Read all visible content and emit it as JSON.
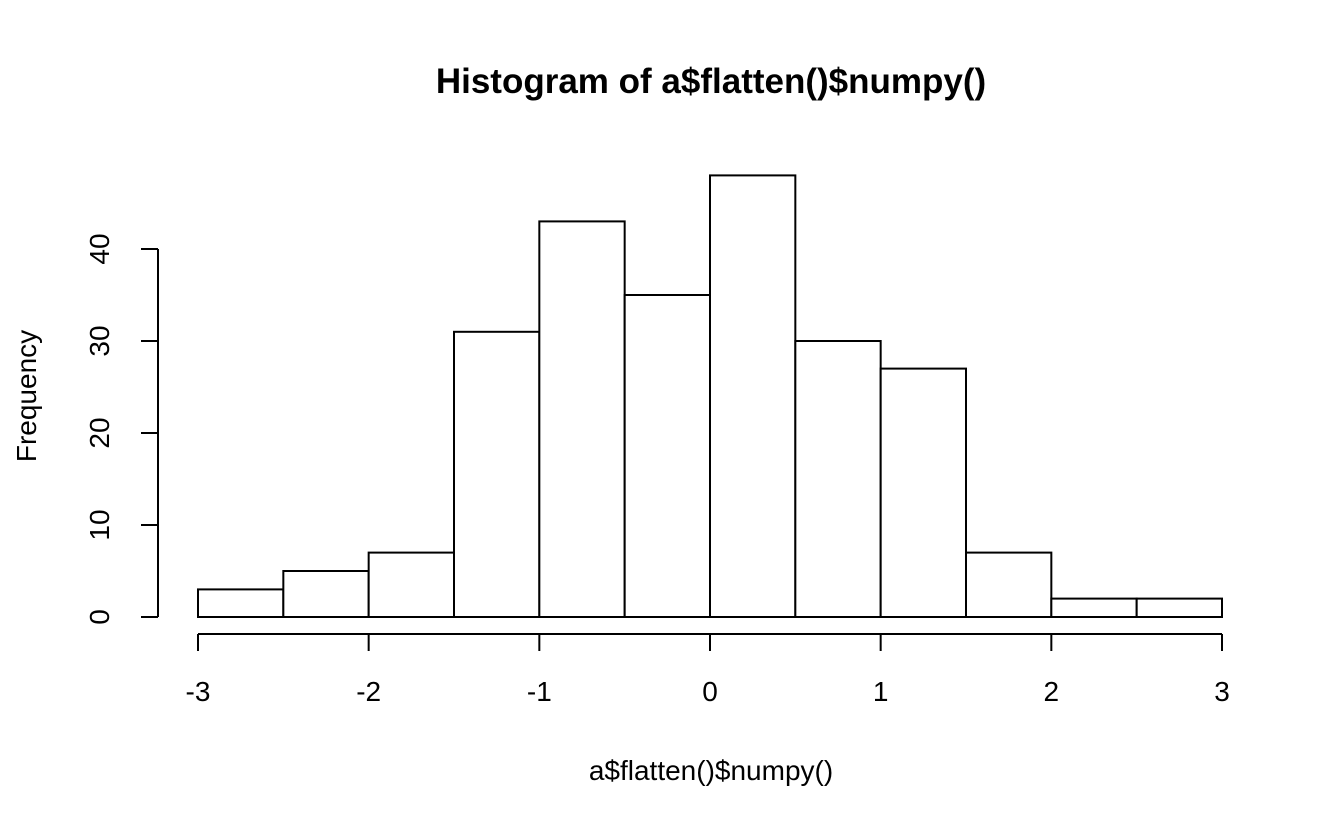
{
  "chart_data": {
    "type": "bar",
    "histogram": true,
    "title": "Histogram of a$flatten()$numpy()",
    "xlabel": "a$flatten()$numpy()",
    "ylabel": "Frequency",
    "bin_edges": [
      -3,
      -2.5,
      -2,
      -1.5,
      -1,
      -0.5,
      0,
      0.5,
      1,
      1.5,
      2,
      2.5,
      3
    ],
    "values": [
      3,
      5,
      7,
      31,
      43,
      35,
      48,
      30,
      27,
      7,
      2,
      2
    ],
    "xlim": [
      -3,
      3
    ],
    "ylim": [
      0,
      48
    ],
    "x_ticks": [
      -3,
      -2,
      -1,
      0,
      1,
      2,
      3
    ],
    "x_tick_labels": [
      "-3",
      "-2",
      "-1",
      "0",
      "1",
      "2",
      "3"
    ],
    "y_ticks": [
      0,
      10,
      20,
      30,
      40
    ],
    "y_tick_labels": [
      "0",
      "10",
      "20",
      "30",
      "40"
    ],
    "grid": false,
    "bar_fill": "#ffffff",
    "bar_stroke": "#000000"
  }
}
